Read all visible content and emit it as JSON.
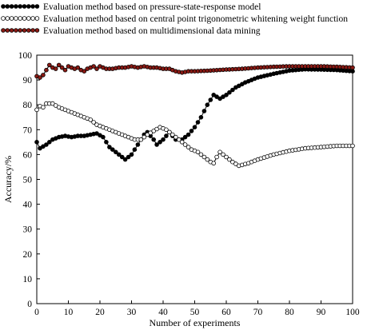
{
  "chart_data": {
    "type": "line",
    "xlabel": "Number of experiments",
    "ylabel": "Accuracy/%",
    "xlim": [
      0,
      100
    ],
    "ylim": [
      0,
      100
    ],
    "xticks": [
      "0",
      "10",
      "20",
      "30",
      "40",
      "50",
      "60",
      "70",
      "80",
      "90",
      "100"
    ],
    "yticks": [
      "0",
      "10",
      "20",
      "30",
      "40",
      "50",
      "60",
      "70",
      "80",
      "90",
      "100"
    ],
    "grid": false,
    "legend_position": "top-left, above plot",
    "series": [
      {
        "name": "Evaluation method based on pressure-state-response model",
        "marker": "filled-circle",
        "color": "#000000",
        "fill": "#000000",
        "points": [
          [
            0,
            65
          ],
          [
            1,
            62.5
          ],
          [
            3,
            64
          ],
          [
            5,
            66
          ],
          [
            7,
            67
          ],
          [
            9,
            67.5
          ],
          [
            11,
            67
          ],
          [
            13,
            67.5
          ],
          [
            15,
            67.5
          ],
          [
            17,
            68
          ],
          [
            19,
            68.5
          ],
          [
            21,
            67
          ],
          [
            23,
            63
          ],
          [
            25,
            61
          ],
          [
            27,
            59
          ],
          [
            28,
            58
          ],
          [
            30,
            60
          ],
          [
            32,
            64
          ],
          [
            34,
            68
          ],
          [
            35,
            69
          ],
          [
            37,
            66
          ],
          [
            38,
            64
          ],
          [
            40,
            66
          ],
          [
            42,
            69
          ],
          [
            44,
            66
          ],
          [
            46,
            66
          ],
          [
            48,
            68
          ],
          [
            50,
            71
          ],
          [
            52,
            75
          ],
          [
            54,
            80
          ],
          [
            56,
            84
          ],
          [
            58,
            82.5
          ],
          [
            60,
            84
          ],
          [
            63,
            87
          ],
          [
            66,
            89
          ],
          [
            70,
            91
          ],
          [
            75,
            92.5
          ],
          [
            80,
            93.8
          ],
          [
            85,
            94.3
          ],
          [
            90,
            94.2
          ],
          [
            95,
            94
          ],
          [
            100,
            93.5
          ]
        ]
      },
      {
        "name": "Evaluation method based on central point trigonometric whitening weight function",
        "marker": "hollow-circle",
        "color": "#000000",
        "fill": "#ffffff",
        "points": [
          [
            0,
            78
          ],
          [
            1,
            79.5
          ],
          [
            2,
            79
          ],
          [
            3,
            80.5
          ],
          [
            5,
            80.5
          ],
          [
            7,
            79
          ],
          [
            9,
            78
          ],
          [
            11,
            77
          ],
          [
            13,
            76
          ],
          [
            15,
            75
          ],
          [
            17,
            74
          ],
          [
            19,
            72
          ],
          [
            21,
            71
          ],
          [
            23,
            70
          ],
          [
            25,
            69
          ],
          [
            27,
            68
          ],
          [
            29,
            67
          ],
          [
            31,
            66
          ],
          [
            33,
            66
          ],
          [
            35,
            68
          ],
          [
            37,
            69.5
          ],
          [
            39,
            71
          ],
          [
            41,
            70
          ],
          [
            43,
            68
          ],
          [
            45,
            66
          ],
          [
            47,
            64
          ],
          [
            49,
            62
          ],
          [
            51,
            61
          ],
          [
            53,
            59
          ],
          [
            55,
            57
          ],
          [
            56,
            56.5
          ],
          [
            57,
            59
          ],
          [
            58,
            61
          ],
          [
            60,
            59
          ],
          [
            62,
            57
          ],
          [
            64,
            55.5
          ],
          [
            67,
            56.5
          ],
          [
            70,
            58
          ],
          [
            75,
            60
          ],
          [
            80,
            61.5
          ],
          [
            85,
            62.5
          ],
          [
            90,
            63
          ],
          [
            95,
            63.5
          ],
          [
            100,
            63.5
          ]
        ]
      },
      {
        "name": "Evaluation method based on multidimensional data mining",
        "marker": "filled-circle",
        "color": "#000000",
        "fill": "#8b1a14",
        "points": [
          [
            0,
            91.5
          ],
          [
            1,
            91
          ],
          [
            2,
            92
          ],
          [
            3,
            94
          ],
          [
            4,
            96
          ],
          [
            5,
            95
          ],
          [
            6,
            94.5
          ],
          [
            7,
            96
          ],
          [
            8,
            95
          ],
          [
            9,
            94
          ],
          [
            10,
            95.5
          ],
          [
            11,
            95
          ],
          [
            12,
            94.5
          ],
          [
            13,
            95
          ],
          [
            14,
            94
          ],
          [
            15,
            93.5
          ],
          [
            16,
            94.5
          ],
          [
            17,
            95
          ],
          [
            18,
            95.5
          ],
          [
            19,
            94.5
          ],
          [
            20,
            95.5
          ],
          [
            22,
            94.5
          ],
          [
            24,
            94.5
          ],
          [
            26,
            95
          ],
          [
            28,
            95
          ],
          [
            30,
            95.5
          ],
          [
            32,
            95
          ],
          [
            34,
            95.5
          ],
          [
            36,
            95
          ],
          [
            38,
            95
          ],
          [
            40,
            94.5
          ],
          [
            42,
            94.5
          ],
          [
            44,
            93.5
          ],
          [
            46,
            93
          ],
          [
            48,
            93.5
          ],
          [
            50,
            93.5
          ],
          [
            55,
            93.8
          ],
          [
            60,
            94.2
          ],
          [
            65,
            94.5
          ],
          [
            70,
            95
          ],
          [
            75,
            95.3
          ],
          [
            80,
            95.5
          ],
          [
            85,
            95.5
          ],
          [
            90,
            95.5
          ],
          [
            95,
            95.3
          ],
          [
            100,
            95
          ]
        ]
      }
    ]
  }
}
